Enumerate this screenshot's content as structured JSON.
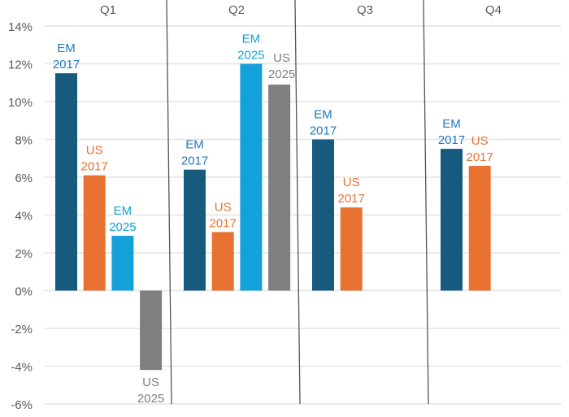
{
  "chart_data": {
    "type": "bar",
    "categories": [
      "Q1",
      "Q2",
      "Q3",
      "Q4"
    ],
    "ylim": [
      -6,
      14
    ],
    "y_ticks": [
      "14%",
      "12%",
      "10%",
      "8%",
      "6%",
      "4%",
      "2%",
      "0%",
      "-2%",
      "-4%",
      "-6%"
    ],
    "y_tick_values": [
      14,
      12,
      10,
      8,
      6,
      4,
      2,
      0,
      -2,
      -4,
      -6
    ],
    "grid": true,
    "colors": {
      "EM 2017": "#165b7f",
      "US 2017": "#e87232",
      "EM 2025": "#14a0d8",
      "US 2025": "#7f7f7f"
    },
    "label_colors": {
      "EM 2017": "#1f78c1",
      "US 2017": "#e87232",
      "EM 2025": "#14a0d8",
      "US 2025": "#7f7f7f"
    },
    "groups": [
      {
        "category": "Q1",
        "bars": [
          {
            "label": [
              "EM",
              "2017"
            ],
            "key": "EM 2017",
            "value": 11.5
          },
          {
            "label": [
              "US",
              "2017"
            ],
            "key": "US 2017",
            "value": 6.1
          },
          {
            "label": [
              "EM",
              "2025"
            ],
            "key": "EM 2025",
            "value": 2.9
          },
          {
            "label": [
              "US",
              "2025"
            ],
            "key": "US 2025",
            "value": -4.2
          }
        ]
      },
      {
        "category": "Q2",
        "bars": [
          {
            "label": [
              "EM",
              "2017"
            ],
            "key": "EM 2017",
            "value": 6.4
          },
          {
            "label": [
              "US",
              "2017"
            ],
            "key": "US 2017",
            "value": 3.1
          },
          {
            "label": [
              "EM",
              "2025"
            ],
            "key": "EM 2025",
            "value": 12.0
          },
          {
            "label": [
              "US",
              "2025"
            ],
            "key": "US 2025",
            "value": 10.9
          }
        ]
      },
      {
        "category": "Q3",
        "bars": [
          {
            "label": [
              "EM",
              "2017"
            ],
            "key": "EM 2017",
            "value": 8.0
          },
          {
            "label": [
              "US",
              "2017"
            ],
            "key": "US 2017",
            "value": 4.4
          }
        ]
      },
      {
        "category": "Q4",
        "bars": [
          {
            "label": [
              "EM",
              "2017"
            ],
            "key": "EM 2017",
            "value": 7.5
          },
          {
            "label": [
              "US",
              "2017"
            ],
            "key": "US 2017",
            "value": 6.6
          }
        ]
      }
    ]
  }
}
